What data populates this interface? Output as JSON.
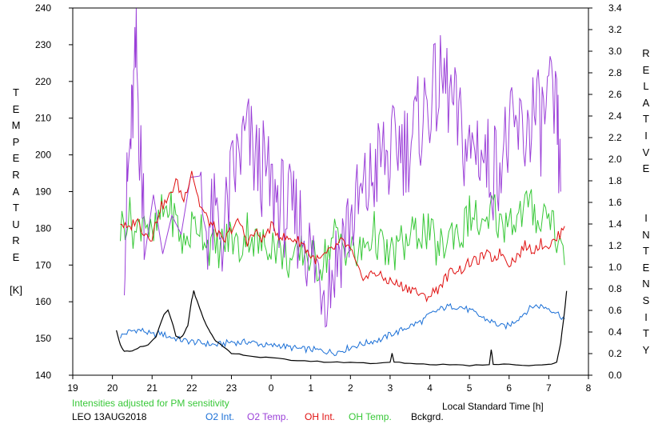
{
  "chart_data": {
    "type": "line",
    "left_axis_letters": [
      "T",
      "E",
      "M",
      "P",
      "E",
      "R",
      "A",
      "T",
      "U",
      "R",
      "E",
      "",
      "[K]"
    ],
    "right_axis_letters": [
      "R",
      "E",
      "L",
      "A",
      "T",
      "I",
      "V",
      "E",
      "",
      "",
      "I",
      "N",
      "T",
      "E",
      "N",
      "S",
      "I",
      "T",
      "Y"
    ],
    "xlabel": "Local Standard Time [h]",
    "x_ticks": [
      "19",
      "20",
      "21",
      "22",
      "23",
      "0",
      "1",
      "2",
      "3",
      "4",
      "5",
      "6",
      "7",
      "8"
    ],
    "xlim": [
      19,
      32
    ],
    "y_left_ticks": [
      "140",
      "150",
      "160",
      "170",
      "180",
      "190",
      "200",
      "210",
      "220",
      "230",
      "240"
    ],
    "ylim_left": [
      140,
      240
    ],
    "y_right_ticks": [
      "0.0",
      "0.2",
      "0.4",
      "0.6",
      "0.8",
      "1.0",
      "1.2",
      "1.4",
      "1.6",
      "1.8",
      "2.0",
      "2.2",
      "2.4",
      "2.6",
      "2.8",
      "3.0",
      "3.2",
      "3.4"
    ],
    "ylim_right": [
      0,
      3.4
    ],
    "note": "Intensities adjusted for PM sensitivity",
    "station": "LEO 13AUG2018",
    "colors": {
      "o2_int": "#1a6fd6",
      "o2_temp": "#9b40d8",
      "oh_int": "#e01010",
      "oh_temp": "#38c838",
      "bckgrd": "#000000",
      "note": "#38c838"
    },
    "series": [
      {
        "name": "O2 Int.",
        "axis": "right",
        "x": [
          20.2,
          20.4,
          20.6,
          20.8,
          21.0,
          21.2,
          21.4,
          21.6,
          21.8,
          22.0,
          22.2,
          22.4,
          22.6,
          22.8,
          23.0,
          23.2,
          23.4,
          23.6,
          23.8,
          24.0,
          24.2,
          24.4,
          24.6,
          24.8,
          25.0,
          25.2,
          25.4,
          25.6,
          25.8,
          26.0,
          26.2,
          26.4,
          26.6,
          26.8,
          27.0,
          27.2,
          27.4,
          27.6,
          27.8,
          28.0,
          28.2,
          28.4,
          28.6,
          28.8,
          29.0,
          29.2,
          29.4,
          29.6,
          29.8,
          30.0,
          30.2,
          30.4,
          30.6,
          30.8,
          31.0,
          31.2,
          31.4
        ],
        "values": [
          0.36,
          0.4,
          0.42,
          0.41,
          0.37,
          0.39,
          0.36,
          0.34,
          0.32,
          0.31,
          0.3,
          0.29,
          0.28,
          0.29,
          0.31,
          0.3,
          0.31,
          0.3,
          0.28,
          0.27,
          0.28,
          0.26,
          0.25,
          0.24,
          0.24,
          0.23,
          0.22,
          0.21,
          0.23,
          0.26,
          0.28,
          0.3,
          0.32,
          0.33,
          0.38,
          0.4,
          0.44,
          0.47,
          0.5,
          0.56,
          0.6,
          0.63,
          0.64,
          0.63,
          0.6,
          0.56,
          0.52,
          0.49,
          0.45,
          0.46,
          0.52,
          0.58,
          0.64,
          0.64,
          0.62,
          0.58,
          0.52
        ]
      },
      {
        "name": "O2 Temp.",
        "axis": "left",
        "x": [
          20.3,
          20.4,
          20.5,
          20.6,
          20.7,
          20.8,
          22.2,
          22.4,
          22.6,
          22.8,
          23.0,
          23.2,
          23.4,
          23.6,
          23.8,
          24.0,
          24.2,
          24.4,
          24.6,
          24.8,
          25.0,
          25.2,
          25.4,
          25.6,
          25.8,
          26.0,
          26.2,
          26.4,
          26.6,
          26.8,
          27.0,
          27.2,
          27.4,
          27.6,
          27.8,
          28.0,
          28.2,
          28.4,
          28.6,
          28.8,
          29.0,
          29.2,
          29.4,
          29.6,
          29.8,
          30.0,
          30.2,
          30.4,
          30.6,
          30.8,
          31.0,
          31.2,
          31.3
        ],
        "values": [
          175,
          195,
          210,
          228,
          200,
          185,
          188,
          180,
          182,
          178,
          192,
          200,
          205,
          198,
          196,
          190,
          188,
          184,
          183,
          180,
          172,
          168,
          165,
          170,
          178,
          182,
          186,
          190,
          195,
          200,
          198,
          204,
          202,
          206,
          210,
          215,
          218,
          220,
          212,
          205,
          200,
          204,
          198,
          196,
          200,
          204,
          206,
          205,
          212,
          208,
          214,
          210,
          190
        ]
      },
      {
        "name": "OH Int.",
        "axis": "right",
        "x": [
          20.2,
          20.4,
          20.6,
          20.8,
          21.0,
          21.2,
          21.4,
          21.6,
          21.8,
          22.0,
          22.2,
          22.4,
          22.6,
          22.8,
          23.0,
          23.2,
          23.4,
          23.6,
          23.8,
          24.0,
          24.2,
          24.4,
          24.6,
          24.8,
          25.0,
          25.2,
          25.4,
          25.6,
          25.8,
          26.0,
          26.2,
          26.4,
          26.6,
          26.8,
          27.0,
          27.2,
          27.4,
          27.6,
          27.8,
          28.0,
          28.2,
          28.4,
          28.6,
          28.8,
          29.0,
          29.2,
          29.4,
          29.6,
          29.8,
          30.0,
          30.2,
          30.4,
          30.6,
          30.8,
          31.0,
          31.2,
          31.4
        ],
        "values": [
          1.42,
          1.34,
          1.45,
          1.32,
          1.28,
          1.55,
          1.62,
          1.8,
          1.62,
          1.9,
          1.58,
          1.44,
          1.35,
          1.22,
          1.36,
          1.42,
          1.24,
          1.32,
          1.26,
          1.38,
          1.3,
          1.26,
          1.26,
          1.22,
          1.1,
          1.06,
          1.12,
          1.18,
          1.24,
          1.16,
          0.96,
          0.9,
          0.96,
          0.9,
          0.87,
          0.84,
          0.81,
          0.8,
          0.72,
          0.74,
          0.8,
          0.9,
          0.98,
          0.98,
          1.04,
          1.06,
          1.12,
          1.08,
          1.14,
          1.04,
          1.1,
          1.2,
          1.16,
          1.22,
          1.2,
          1.26,
          1.38
        ]
      },
      {
        "name": "OH Temp.",
        "axis": "left",
        "x": [
          20.2,
          20.4,
          20.6,
          20.8,
          21.0,
          21.2,
          21.4,
          21.6,
          21.8,
          22.0,
          22.2,
          22.4,
          22.6,
          22.8,
          23.0,
          23.2,
          23.4,
          23.6,
          23.8,
          24.0,
          24.2,
          24.4,
          24.6,
          24.8,
          25.0,
          25.2,
          25.4,
          25.6,
          25.8,
          26.0,
          26.2,
          26.4,
          26.6,
          26.8,
          27.0,
          27.2,
          27.4,
          27.6,
          27.8,
          28.0,
          28.2,
          28.4,
          28.6,
          28.8,
          29.0,
          29.2,
          29.4,
          29.6,
          29.8,
          30.0,
          30.2,
          30.4,
          30.6,
          30.8,
          31.0,
          31.2,
          31.4
        ],
        "values": [
          180,
          184,
          178,
          185,
          176,
          183,
          186,
          182,
          175,
          180,
          182,
          176,
          174,
          176,
          178,
          174,
          180,
          176,
          175,
          177,
          174,
          172,
          170,
          174,
          172,
          170,
          173,
          178,
          176,
          174,
          172,
          176,
          179,
          174,
          172,
          175,
          176,
          178,
          180,
          178,
          174,
          176,
          180,
          178,
          184,
          182,
          178,
          186,
          180,
          184,
          182,
          186,
          185,
          182,
          186,
          178,
          170
        ]
      },
      {
        "name": "Bckgrd.",
        "axis": "right",
        "x": [
          20.1,
          20.2,
          20.3,
          20.5,
          20.7,
          20.9,
          21.1,
          21.3,
          21.4,
          21.5,
          21.6,
          21.7,
          21.8,
          21.9,
          22.0,
          22.05,
          22.1,
          22.2,
          22.3,
          22.4,
          22.5,
          22.6,
          22.8,
          23.0,
          23.3,
          23.6,
          24.0,
          24.5,
          25.0,
          25.5,
          26.0,
          26.5,
          27.0,
          27.05,
          27.1,
          27.5,
          28.0,
          28.5,
          29.0,
          29.5,
          29.55,
          29.6,
          30.0,
          30.5,
          31.0,
          31.2,
          31.3,
          31.4,
          31.45
        ],
        "values": [
          0.42,
          0.28,
          0.22,
          0.22,
          0.26,
          0.28,
          0.36,
          0.56,
          0.6,
          0.5,
          0.36,
          0.34,
          0.38,
          0.46,
          0.7,
          0.78,
          0.72,
          0.62,
          0.52,
          0.44,
          0.38,
          0.32,
          0.26,
          0.2,
          0.19,
          0.17,
          0.16,
          0.14,
          0.13,
          0.12,
          0.12,
          0.11,
          0.12,
          0.2,
          0.12,
          0.11,
          0.1,
          0.1,
          0.09,
          0.1,
          0.24,
          0.1,
          0.1,
          0.09,
          0.1,
          0.12,
          0.3,
          0.6,
          0.78
        ]
      }
    ]
  }
}
